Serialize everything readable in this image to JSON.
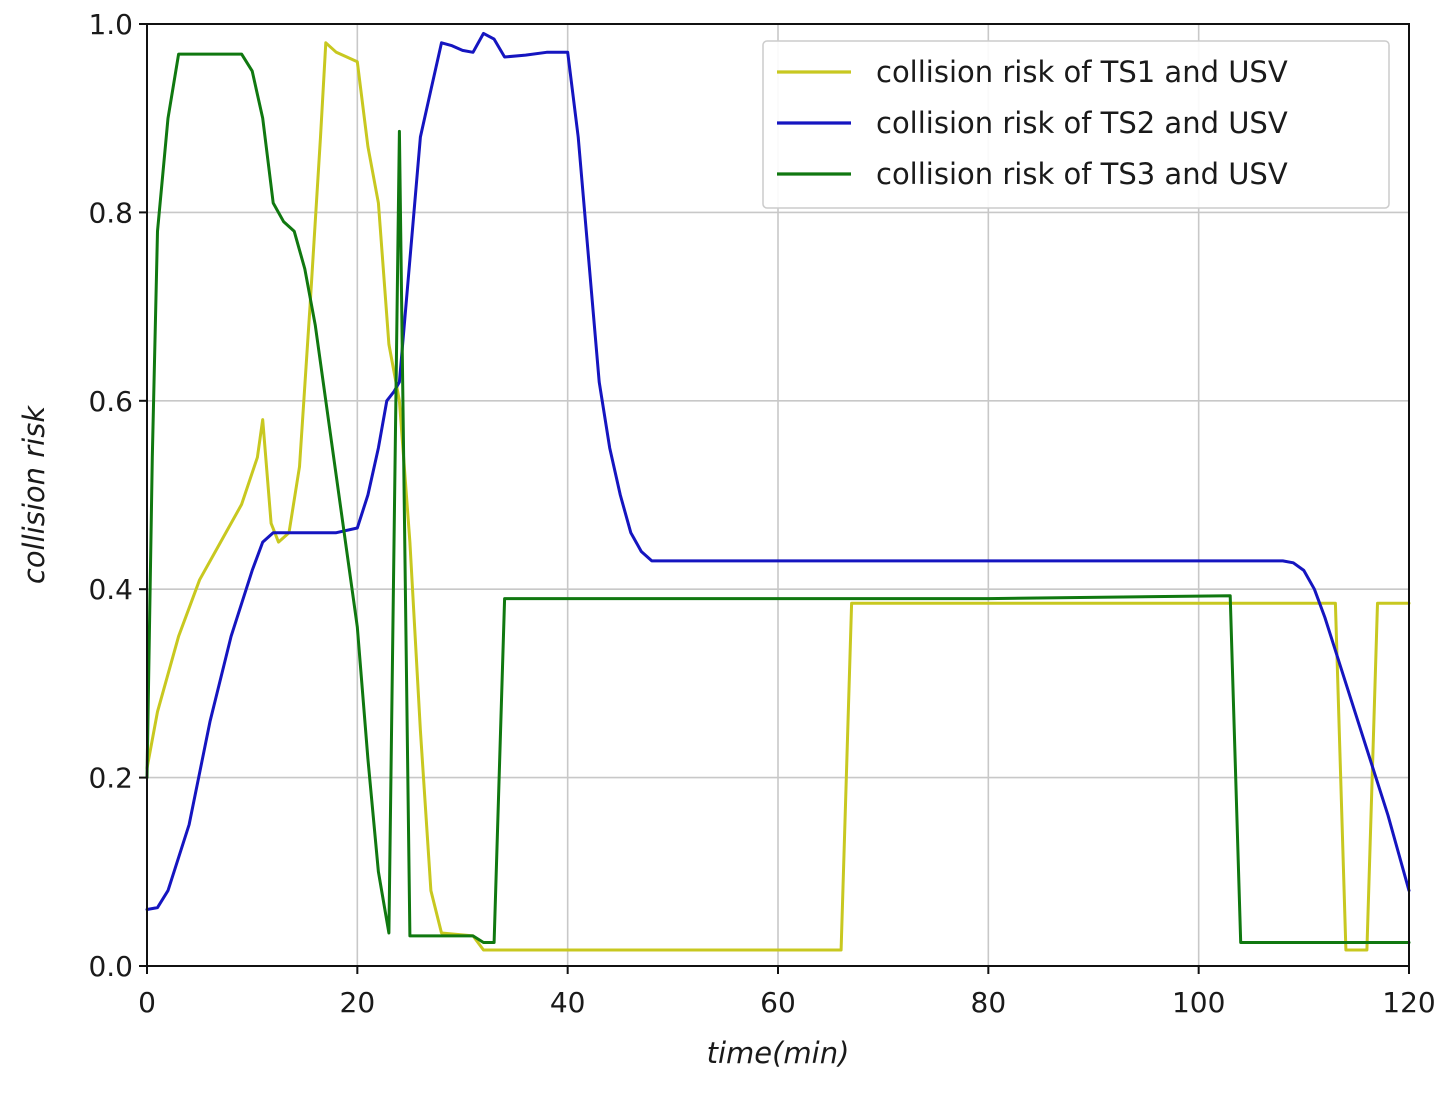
{
  "chart_data": {
    "type": "line",
    "title": "",
    "xlabel": "time(min)",
    "ylabel": "collision risk",
    "xlim": [
      0,
      120
    ],
    "ylim": [
      0,
      1.0
    ],
    "xticks": [
      0,
      20,
      40,
      60,
      80,
      100,
      120
    ],
    "yticks": [
      0.0,
      0.2,
      0.4,
      0.6,
      0.8,
      1.0
    ],
    "xtick_labels": [
      "0",
      "20",
      "40",
      "60",
      "80",
      "100",
      "120"
    ],
    "ytick_labels": [
      "0.0",
      "0.2",
      "0.4",
      "0.6",
      "0.8",
      "1.0"
    ],
    "grid": true,
    "legend_position": "top-right",
    "series": [
      {
        "name": "collision risk of TS1 and USV",
        "color": "#c8c820",
        "points": [
          [
            0,
            0.21
          ],
          [
            1,
            0.27
          ],
          [
            3,
            0.35
          ],
          [
            5,
            0.41
          ],
          [
            7,
            0.45
          ],
          [
            9,
            0.49
          ],
          [
            10.5,
            0.54
          ],
          [
            11,
            0.58
          ],
          [
            11.8,
            0.47
          ],
          [
            12.5,
            0.45
          ],
          [
            13.5,
            0.46
          ],
          [
            14.5,
            0.53
          ],
          [
            15.5,
            0.7
          ],
          [
            16.5,
            0.88
          ],
          [
            17,
            0.98
          ],
          [
            18,
            0.97
          ],
          [
            19,
            0.965
          ],
          [
            20,
            0.96
          ],
          [
            21,
            0.87
          ],
          [
            22,
            0.81
          ],
          [
            23,
            0.66
          ],
          [
            24,
            0.6
          ],
          [
            25,
            0.45
          ],
          [
            26,
            0.25
          ],
          [
            27,
            0.08
          ],
          [
            28,
            0.035
          ],
          [
            31,
            0.032
          ],
          [
            32,
            0.017
          ],
          [
            34,
            0.017
          ],
          [
            60,
            0.017
          ],
          [
            66,
            0.017
          ],
          [
            67,
            0.385
          ],
          [
            90,
            0.385
          ],
          [
            113,
            0.385
          ],
          [
            114,
            0.017
          ],
          [
            116,
            0.017
          ],
          [
            117,
            0.385
          ],
          [
            120,
            0.385
          ]
        ]
      },
      {
        "name": "collision risk of TS2 and USV",
        "color": "#1515c0",
        "points": [
          [
            0,
            0.06
          ],
          [
            1,
            0.062
          ],
          [
            2,
            0.08
          ],
          [
            4,
            0.15
          ],
          [
            6,
            0.26
          ],
          [
            8,
            0.35
          ],
          [
            10,
            0.42
          ],
          [
            11,
            0.45
          ],
          [
            12,
            0.46
          ],
          [
            14,
            0.46
          ],
          [
            16,
            0.46
          ],
          [
            18,
            0.46
          ],
          [
            20,
            0.465
          ],
          [
            21,
            0.5
          ],
          [
            22,
            0.55
          ],
          [
            22.8,
            0.6
          ],
          [
            23.5,
            0.61
          ],
          [
            24,
            0.62
          ],
          [
            25,
            0.75
          ],
          [
            26,
            0.88
          ],
          [
            27,
            0.93
          ],
          [
            28,
            0.98
          ],
          [
            29,
            0.977
          ],
          [
            30,
            0.972
          ],
          [
            31,
            0.97
          ],
          [
            32,
            0.99
          ],
          [
            33,
            0.984
          ],
          [
            34,
            0.965
          ],
          [
            36,
            0.967
          ],
          [
            38,
            0.97
          ],
          [
            40,
            0.97
          ],
          [
            41,
            0.88
          ],
          [
            42,
            0.75
          ],
          [
            43,
            0.62
          ],
          [
            44,
            0.55
          ],
          [
            45,
            0.5
          ],
          [
            46,
            0.46
          ],
          [
            47,
            0.44
          ],
          [
            48,
            0.43
          ],
          [
            50,
            0.43
          ],
          [
            70,
            0.43
          ],
          [
            90,
            0.43
          ],
          [
            108,
            0.43
          ],
          [
            109,
            0.428
          ],
          [
            110,
            0.42
          ],
          [
            111,
            0.4
          ],
          [
            112,
            0.37
          ],
          [
            114,
            0.3
          ],
          [
            116,
            0.23
          ],
          [
            118,
            0.16
          ],
          [
            120,
            0.08
          ]
        ]
      },
      {
        "name": "collision risk of TS3 and USV",
        "color": "#107810",
        "points": [
          [
            0,
            0.2
          ],
          [
            0.5,
            0.54
          ],
          [
            1,
            0.78
          ],
          [
            2,
            0.9
          ],
          [
            3,
            0.968
          ],
          [
            5,
            0.968
          ],
          [
            7,
            0.968
          ],
          [
            9,
            0.968
          ],
          [
            10,
            0.95
          ],
          [
            11,
            0.9
          ],
          [
            12,
            0.81
          ],
          [
            13,
            0.79
          ],
          [
            14,
            0.78
          ],
          [
            15,
            0.74
          ],
          [
            16,
            0.68
          ],
          [
            17,
            0.6
          ],
          [
            18,
            0.52
          ],
          [
            19,
            0.44
          ],
          [
            20,
            0.36
          ],
          [
            21,
            0.22
          ],
          [
            22,
            0.1
          ],
          [
            23,
            0.035
          ],
          [
            24,
            0.886
          ],
          [
            25,
            0.032
          ],
          [
            31,
            0.032
          ],
          [
            32,
            0.025
          ],
          [
            33,
            0.025
          ],
          [
            34,
            0.39
          ],
          [
            60,
            0.39
          ],
          [
            80,
            0.39
          ],
          [
            103,
            0.393
          ],
          [
            104,
            0.025
          ],
          [
            120,
            0.025
          ]
        ]
      }
    ]
  }
}
